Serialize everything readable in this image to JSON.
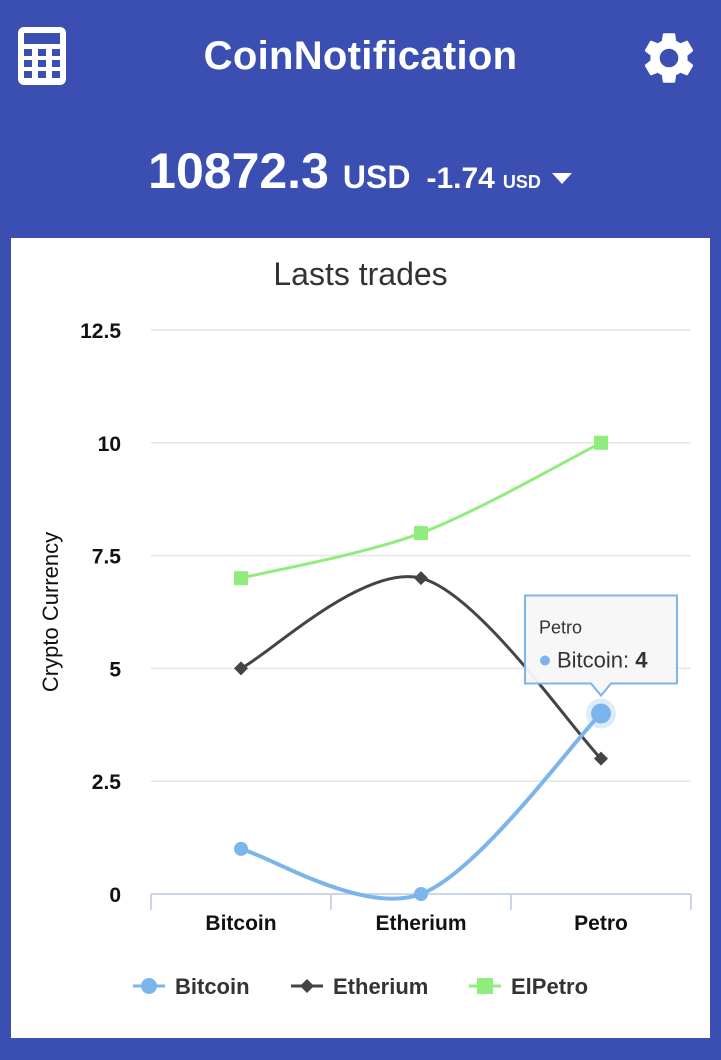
{
  "app": {
    "title": "CoinNotification"
  },
  "ticker": {
    "price": "10872.3",
    "currency": "USD",
    "change": "-1.74",
    "change_currency": "USD"
  },
  "icons": {
    "left": "calculator-icon",
    "right": "gear-icon",
    "change_toggle": "caret-down-icon"
  },
  "colors": {
    "app_bar": "#3b4fb3",
    "bitcoin": "#7cb5ec",
    "etherium": "#434348",
    "elpetro": "#90ed7d"
  },
  "chart_data": {
    "type": "line",
    "title": "Lasts trades",
    "ylabel": "Crypto Currency",
    "categories": [
      "Bitcoin",
      "Etherium",
      "Petro"
    ],
    "ylim": [
      0,
      12.5
    ],
    "yticks": [
      "0",
      "2.5",
      "5",
      "7.5",
      "10",
      "12.5"
    ],
    "grid": true,
    "legend_position": "bottom",
    "series": [
      {
        "name": "Bitcoin",
        "values": [
          1,
          0,
          4
        ],
        "marker": "circle"
      },
      {
        "name": "Etherium",
        "values": [
          5,
          7,
          3
        ],
        "marker": "diamond"
      },
      {
        "name": "ElPetro",
        "values": [
          7,
          8,
          10
        ],
        "marker": "square"
      }
    ],
    "tooltip": {
      "category": "Petro",
      "series": "Bitcoin",
      "value": "4"
    }
  }
}
